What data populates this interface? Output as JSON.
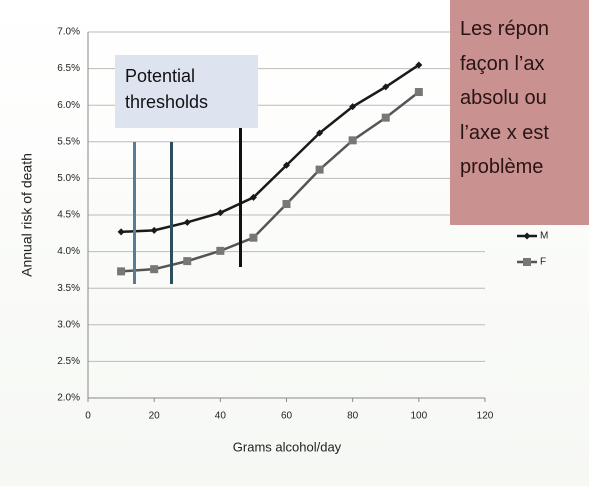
{
  "chart_data": {
    "type": "line",
    "x_label": "Grams alcohol/day",
    "y_label": "Annual risk of death",
    "x": [
      10,
      20,
      30,
      40,
      50,
      60,
      70,
      80,
      90,
      100
    ],
    "series": [
      {
        "name": "M",
        "color": "#1a1a1a",
        "marker": "diamond",
        "values": [
          4.27,
          4.29,
          4.4,
          4.53,
          4.74,
          5.18,
          5.62,
          5.98,
          6.25,
          6.55
        ]
      },
      {
        "name": "F",
        "color": "#555555",
        "marker": "square",
        "values": [
          3.73,
          3.76,
          3.87,
          4.01,
          4.19,
          4.65,
          5.12,
          5.52,
          5.83,
          6.18
        ]
      }
    ],
    "xlim": [
      0,
      120
    ],
    "xticks": [
      0,
      20,
      40,
      60,
      80,
      100,
      120
    ],
    "ylim": [
      2,
      7
    ],
    "yticks": [
      {
        "value": 2,
        "label": "2.0%"
      },
      {
        "value": 2.5,
        "label": "2.5%"
      },
      {
        "value": 3,
        "label": "3.0%"
      },
      {
        "value": 3.5,
        "label": "3.5%"
      },
      {
        "value": 4,
        "label": "4.0%"
      },
      {
        "value": 4.5,
        "label": "4.5%"
      },
      {
        "value": 5,
        "label": "5.0%"
      },
      {
        "value": 5.5,
        "label": "5.5%"
      },
      {
        "value": 6,
        "label": "6.0%"
      },
      {
        "value": 6.5,
        "label": "6.5%"
      },
      {
        "value": 7,
        "label": "7.0%"
      }
    ],
    "grid": true,
    "legend": "right"
  },
  "overlay": {
    "threshold_label": "Potential thresholds",
    "comment_lines": [
      "Les répon",
      "façon l’ax",
      "absolu ou",
      "l’axe x est",
      "problème"
    ]
  }
}
